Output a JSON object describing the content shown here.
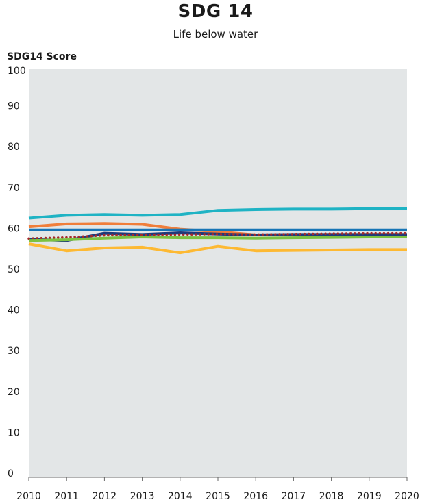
{
  "chart_data": {
    "type": "line",
    "title": "SDG 14",
    "subtitle": "Life below water",
    "ylabel": "SDG14 Score",
    "xlabel": "",
    "ylim": [
      0,
      100
    ],
    "yticks": [
      0,
      10,
      20,
      30,
      40,
      50,
      60,
      70,
      80,
      90,
      100
    ],
    "x": [
      2010,
      2011,
      2012,
      2013,
      2014,
      2015,
      2016,
      2017,
      2018,
      2019,
      2020
    ],
    "grid": false,
    "background": "#e3e6e7",
    "series": [
      {
        "color": "#1fb3c4",
        "style": "solid",
        "values": [
          63.5,
          64.2,
          64.4,
          64.2,
          64.4,
          65.4,
          65.6,
          65.7,
          65.7,
          65.8,
          65.8
        ]
      },
      {
        "color": "#f07e3a",
        "style": "solid",
        "values": [
          61.4,
          62.1,
          62.2,
          62.0,
          60.8,
          60.2,
          59.4,
          59.4,
          59.5,
          59.5,
          59.5
        ]
      },
      {
        "color": "#1775b6",
        "style": "solid",
        "values": [
          60.6,
          60.6,
          60.6,
          60.6,
          60.6,
          60.6,
          60.6,
          60.6,
          60.6,
          60.6,
          60.6
        ]
      },
      {
        "color": "#1f3a7a",
        "style": "solid",
        "values": [
          58.3,
          58.0,
          59.8,
          59.5,
          59.9,
          59.6,
          59.4,
          59.5,
          59.5,
          59.5,
          59.5
        ]
      },
      {
        "color": "#a52a2a",
        "style": "dotted",
        "values": [
          58.5,
          58.8,
          59.3,
          59.4,
          59.5,
          59.6,
          59.5,
          59.6,
          59.7,
          59.8,
          59.8
        ]
      },
      {
        "color": "#7cc242",
        "style": "solid",
        "values": [
          58.0,
          58.2,
          58.6,
          58.9,
          58.7,
          58.7,
          58.6,
          58.7,
          58.8,
          58.9,
          58.9
        ]
      },
      {
        "color": "#fdb933",
        "style": "solid",
        "values": [
          57.2,
          55.5,
          56.2,
          56.4,
          55.0,
          56.6,
          55.5,
          55.6,
          55.7,
          55.8,
          55.8
        ]
      }
    ]
  }
}
